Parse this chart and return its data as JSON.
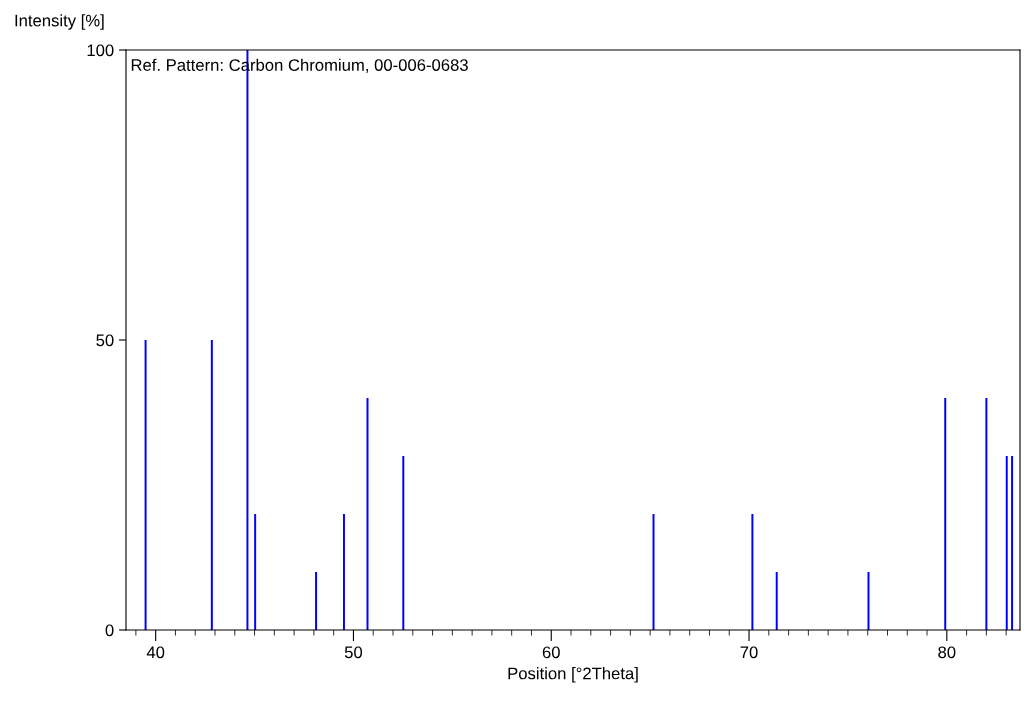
{
  "chart_data": {
    "type": "bar",
    "xlabel": "Position [°2Theta]",
    "ylabel": "Intensity [%]",
    "annotations": [
      "Ref. Pattern: Carbon Chromium, 00-006-0683"
    ],
    "x": [
      39.49,
      42.84,
      44.64,
      45.03,
      48.11,
      49.52,
      50.71,
      52.52,
      65.17,
      70.17,
      71.4,
      76.04,
      79.92,
      82.0,
      83.03,
      83.3
    ],
    "values": [
      50,
      50,
      100,
      20,
      10,
      20,
      40,
      30,
      20,
      20,
      10,
      10,
      40,
      40,
      30,
      30
    ],
    "color": "#0000ff",
    "xlim": [
      38.5,
      83.7
    ],
    "xticks": [
      40,
      50,
      60,
      70,
      80
    ],
    "ylim": [
      0,
      100
    ],
    "yticks": [
      0,
      50,
      100
    ],
    "grid": false,
    "legend": false
  }
}
